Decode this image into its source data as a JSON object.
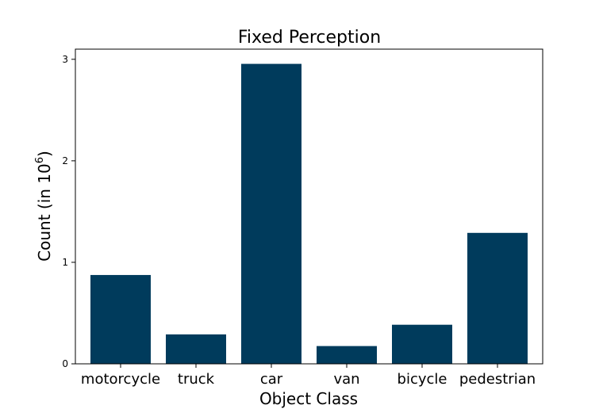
{
  "chart_data": {
    "type": "bar",
    "title": "Fixed Perception",
    "xlabel": "Object Class",
    "ylabel_prefix": "Count (in 10",
    "ylabel_exponent": "6",
    "ylabel_suffix": ")",
    "categories": [
      "motorcycle",
      "truck",
      "car",
      "van",
      "bicycle",
      "pedestrian"
    ],
    "values": [
      0.875,
      0.29,
      2.955,
      0.175,
      0.385,
      1.29
    ],
    "yticks": [
      0,
      1,
      2,
      3
    ],
    "ylim": [
      0,
      3.1
    ],
    "bar_color": "#003b5c",
    "grid": false
  }
}
